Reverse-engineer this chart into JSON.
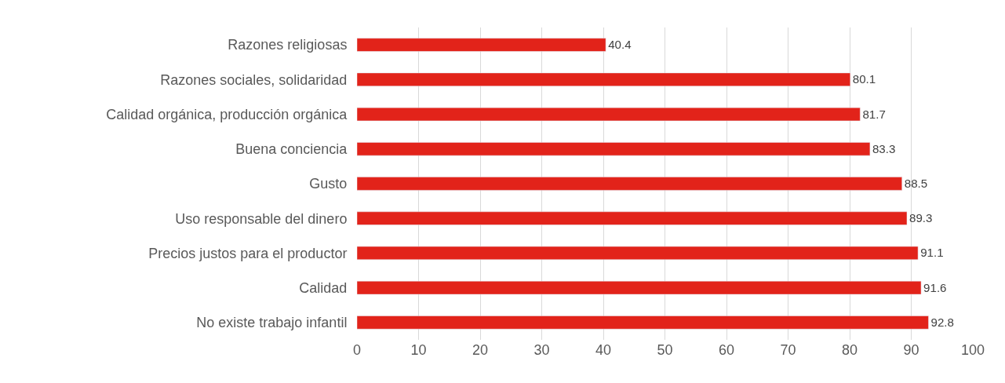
{
  "chart_data": {
    "type": "bar",
    "orientation": "horizontal",
    "categories": [
      "Razones religiosas",
      "Razones sociales, solidaridad",
      "Calidad orgánica, producción orgánica",
      "Buena conciencia",
      "Gusto",
      "Uso responsable del dinero",
      "Precios justos para el productor",
      "Calidad",
      "No existe trabajo infantil"
    ],
    "values": [
      40.4,
      80.1,
      81.7,
      83.3,
      88.5,
      89.3,
      91.1,
      91.6,
      92.8
    ],
    "color": "#e2231a",
    "xlim": [
      0,
      100
    ],
    "xticks": [
      0,
      10,
      20,
      30,
      40,
      50,
      60,
      70,
      80,
      90,
      100
    ],
    "grid": "x",
    "data_labels": true
  }
}
